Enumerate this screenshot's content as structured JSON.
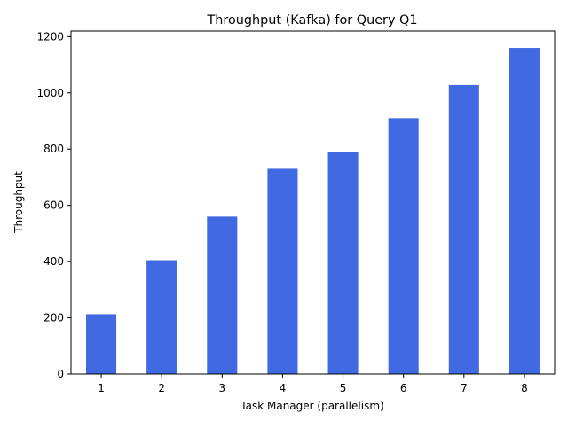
{
  "chart_data": {
    "type": "bar",
    "title": "Throughput (Kafka) for Query Q1",
    "xlabel": "Task Manager (parallelism)",
    "ylabel": "Throughput",
    "categories": [
      "1",
      "2",
      "3",
      "4",
      "5",
      "6",
      "7",
      "8"
    ],
    "values": [
      213,
      405,
      560,
      730,
      790,
      910,
      1028,
      1160
    ],
    "ylim": [
      0,
      1220
    ],
    "yticks": [
      0,
      200,
      400,
      600,
      800,
      1000,
      1200
    ],
    "grid": false,
    "legend": "none",
    "bar_color": "#4169E1"
  }
}
